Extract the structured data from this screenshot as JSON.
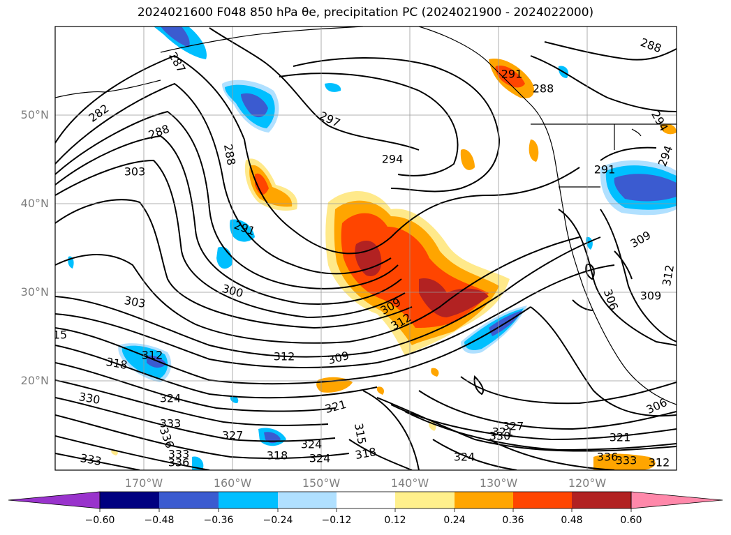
{
  "title": "2024021600 F048 850 hPa θe, precipitation PC (2024021900 - 2024022000)",
  "lat_labels": [
    "50°N",
    "40°N",
    "30°N",
    "20°N"
  ],
  "lon_labels": [
    "170°W",
    "160°W",
    "150°W",
    "140°W",
    "130°W",
    "120°W"
  ],
  "colorbar": {
    "ticks": [
      "−0.60",
      "−0.48",
      "−0.36",
      "−0.24",
      "−0.12",
      "0.12",
      "0.24",
      "0.36",
      "0.48",
      "0.60"
    ],
    "colors": [
      "#9933cc",
      "#000080",
      "#3b5bd0",
      "#00bfff",
      "#b0e0ff",
      "#ffffff",
      "#fff08c",
      "#ffa500",
      "#ff4500",
      "#b22222",
      "#ff88aa"
    ]
  },
  "contour_labels": [
    {
      "text": "282"
    },
    {
      "text": "288"
    },
    {
      "text": "303"
    },
    {
      "text": "287"
    },
    {
      "text": "288"
    },
    {
      "text": "291"
    },
    {
      "text": "297"
    },
    {
      "text": "294"
    },
    {
      "text": "300"
    },
    {
      "text": "303"
    },
    {
      "text": "309"
    },
    {
      "text": "312"
    },
    {
      "text": "312"
    },
    {
      "text": "309"
    },
    {
      "text": "312"
    },
    {
      "text": "318"
    },
    {
      "text": "330"
    },
    {
      "text": "324"
    },
    {
      "text": "333"
    },
    {
      "text": "336"
    },
    {
      "text": "333"
    },
    {
      "text": "336"
    },
    {
      "text": "333"
    },
    {
      "text": "321"
    },
    {
      "text": "327"
    },
    {
      "text": "318"
    },
    {
      "text": "324"
    },
    {
      "text": "324"
    },
    {
      "text": "315"
    },
    {
      "text": "318"
    },
    {
      "text": "321"
    },
    {
      "text": "324"
    },
    {
      "text": "327"
    },
    {
      "text": "330"
    },
    {
      "text": "306"
    },
    {
      "text": "306"
    },
    {
      "text": "309"
    },
    {
      "text": "309"
    },
    {
      "text": "312"
    },
    {
      "text": "288"
    },
    {
      "text": "291"
    },
    {
      "text": "288"
    },
    {
      "text": "294"
    },
    {
      "text": "294"
    },
    {
      "text": "291"
    },
    {
      "text": "15"
    },
    {
      "text": "321"
    },
    {
      "text": "336"
    },
    {
      "text": "333"
    },
    {
      "text": "312"
    }
  ]
}
